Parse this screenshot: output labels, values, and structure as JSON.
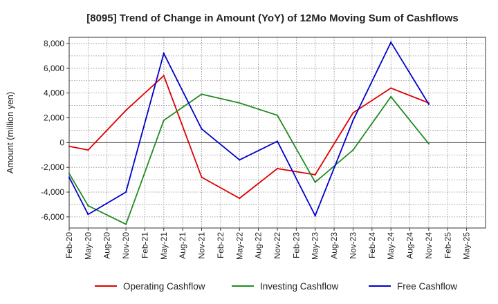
{
  "chart_data": {
    "type": "line",
    "title": "[8095]  Trend of Change in Amount (YoY) of 12Mo Moving Sum of Cashflows",
    "xlabel": "",
    "ylabel": "Amount (million yen)",
    "ylim": [
      -6900,
      8500
    ],
    "yticks": [
      -6000,
      -4000,
      -2000,
      0,
      2000,
      4000,
      6000,
      8000
    ],
    "ytick_labels": [
      "-6,000",
      "-4,000",
      "-2,000",
      "0",
      "2,000",
      "4,000",
      "6,000",
      "8,000"
    ],
    "categories": [
      "Feb-20",
      "May-20",
      "Aug-20",
      "Nov-20",
      "Feb-21",
      "May-21",
      "Aug-21",
      "Nov-21",
      "Feb-22",
      "May-22",
      "Aug-22",
      "Nov-22",
      "Feb-23",
      "May-23",
      "Aug-23",
      "Nov-23",
      "Feb-24",
      "May-24",
      "Aug-24",
      "Nov-24",
      "Feb-25",
      "May-25"
    ],
    "grid": true,
    "legend_position": "bottom",
    "series": [
      {
        "name": "Operating Cashflow",
        "color": "#e00000",
        "values": [
          -300,
          -600,
          null,
          2600,
          null,
          5400,
          null,
          -2800,
          null,
          -4500,
          null,
          -2100,
          null,
          -2600,
          null,
          2400,
          null,
          4400,
          null,
          3200,
          null,
          null
        ]
      },
      {
        "name": "Investing Cashflow",
        "color": "#228b22",
        "values": [
          -2500,
          -5100,
          null,
          -6600,
          null,
          1800,
          null,
          3900,
          null,
          3200,
          null,
          2200,
          null,
          -3200,
          null,
          -600,
          null,
          3700,
          null,
          -100,
          null,
          null
        ]
      },
      {
        "name": "Free Cashflow",
        "color": "#0000cc",
        "values": [
          -2800,
          -5800,
          null,
          -4000,
          null,
          7200,
          null,
          1100,
          null,
          -1400,
          null,
          100,
          null,
          -5900,
          null,
          1800,
          null,
          8100,
          null,
          3100,
          null,
          null
        ]
      }
    ]
  }
}
